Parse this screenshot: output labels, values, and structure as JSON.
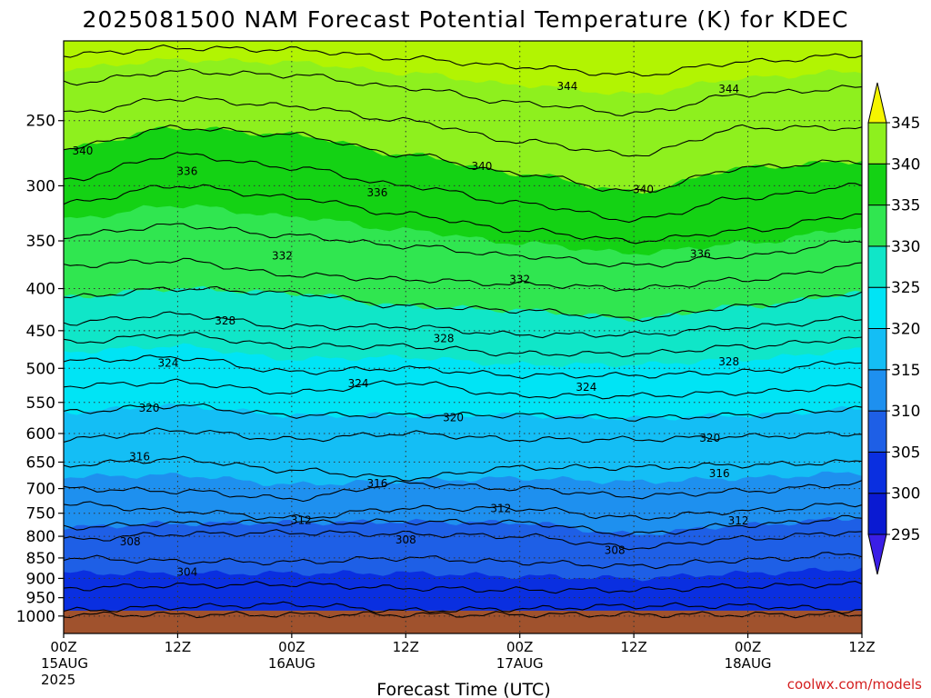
{
  "chart_data": {
    "type": "heatmap",
    "title": "2025081500 NAM Forecast Potential Temperature (K) for KDEC",
    "xlabel": "Forecast Time (UTC)",
    "ylabel": "",
    "credit": "coolwx.com/models",
    "x_tick_labels": [
      {
        "hour": 0,
        "lines": [
          "00Z",
          "15AUG",
          "2025"
        ]
      },
      {
        "hour": 12,
        "lines": [
          "12Z"
        ]
      },
      {
        "hour": 24,
        "lines": [
          "00Z",
          "16AUG"
        ]
      },
      {
        "hour": 36,
        "lines": [
          "12Z"
        ]
      },
      {
        "hour": 48,
        "lines": [
          "00Z",
          "17AUG"
        ]
      },
      {
        "hour": 60,
        "lines": [
          "12Z"
        ]
      },
      {
        "hour": 72,
        "lines": [
          "00Z",
          "18AUG"
        ]
      },
      {
        "hour": 84,
        "lines": [
          "12Z"
        ]
      }
    ],
    "xlim_hours": [
      0,
      84
    ],
    "y_axis": "pressure (hPa), log scale, decreasing upward",
    "ylim_hpa": [
      1050,
      200
    ],
    "y_tick_labels": [
      250,
      300,
      350,
      400,
      450,
      500,
      550,
      600,
      650,
      700,
      750,
      800,
      850,
      900,
      950,
      1000
    ],
    "grid": "dotted at each x and y tick",
    "colorbar": {
      "position": "right",
      "unit": "K",
      "tick_labels": [
        295,
        300,
        305,
        310,
        315,
        320,
        325,
        330,
        335,
        340,
        345
      ],
      "levels": [
        290,
        295,
        300,
        305,
        310,
        315,
        320,
        325,
        330,
        335,
        340,
        345,
        350
      ],
      "colors": [
        "#3a1ee6",
        "#0a1ad2",
        "#0a2fe0",
        "#1e5fe6",
        "#1e90ef",
        "#14bef5",
        "#00e4f5",
        "#10e6c8",
        "#30e650",
        "#14d214",
        "#8ef01e",
        "#b2f402",
        "#f5f500"
      ]
    },
    "ground_color": "#a0522d",
    "ground_top_hpa": 985,
    "isentropes_hpa": [
      {
        "theta": 300,
        "pressure": [
          996,
          996,
          996,
          996,
          996,
          996,
          996,
          996
        ]
      },
      {
        "theta": 302,
        "pressure": [
          985,
          975,
          968,
          985,
          980,
          972,
          972,
          985
        ]
      },
      {
        "theta": 304,
        "pressure": [
          925,
          918,
          915,
          925,
          930,
          930,
          920,
          915
        ]
      },
      {
        "theta": 306,
        "pressure": [
          850,
          858,
          860,
          850,
          860,
          870,
          855,
          840
        ]
      },
      {
        "theta": 308,
        "pressure": [
          808,
          795,
          792,
          795,
          800,
          825,
          805,
          790
        ]
      },
      {
        "theta": 310,
        "pressure": [
          780,
          772,
          770,
          768,
          770,
          795,
          775,
          760
        ]
      },
      {
        "theta": 312,
        "pressure": [
          730,
          745,
          760,
          740,
          740,
          760,
          745,
          730
        ]
      },
      {
        "theta": 314,
        "pressure": [
          700,
          705,
          720,
          690,
          700,
          715,
          705,
          690
        ]
      },
      {
        "theta": 316,
        "pressure": [
          655,
          645,
          665,
          680,
          660,
          660,
          655,
          650
        ]
      },
      {
        "theta": 318,
        "pressure": [
          610,
          595,
          610,
          600,
          610,
          610,
          605,
          600
        ]
      },
      {
        "theta": 320,
        "pressure": [
          565,
          555,
          570,
          570,
          570,
          575,
          570,
          560
        ]
      },
      {
        "theta": 322,
        "pressure": [
          525,
          520,
          535,
          520,
          540,
          540,
          535,
          525
        ]
      },
      {
        "theta": 324,
        "pressure": [
          490,
          485,
          505,
          500,
          510,
          510,
          505,
          490
        ]
      },
      {
        "theta": 326,
        "pressure": [
          465,
          455,
          470,
          470,
          480,
          480,
          470,
          460
        ]
      },
      {
        "theta": 328,
        "pressure": [
          440,
          430,
          445,
          445,
          455,
          455,
          445,
          435
        ]
      },
      {
        "theta": 330,
        "pressure": [
          410,
          400,
          405,
          420,
          425,
          435,
          420,
          405
        ]
      },
      {
        "theta": 332,
        "pressure": [
          375,
          370,
          385,
          390,
          395,
          400,
          390,
          375
        ]
      },
      {
        "theta": 334,
        "pressure": [
          345,
          335,
          345,
          355,
          365,
          375,
          365,
          350
        ]
      },
      {
        "theta": 336,
        "pressure": [
          315,
          300,
          310,
          325,
          340,
          350,
          340,
          325
        ]
      },
      {
        "theta": 338,
        "pressure": [
          295,
          275,
          285,
          300,
          315,
          330,
          310,
          300
        ]
      },
      {
        "theta": 340,
        "pressure": [
          270,
          255,
          260,
          275,
          290,
          305,
          285,
          280
        ]
      },
      {
        "theta": 342,
        "pressure": [
          245,
          235,
          240,
          250,
          265,
          275,
          255,
          255
        ]
      },
      {
        "theta": 344,
        "pressure": [
          225,
          218,
          220,
          228,
          238,
          245,
          232,
          228
        ]
      },
      {
        "theta": 346,
        "pressure": [
          208,
          204,
          205,
          210,
          215,
          220,
          212,
          208
        ]
      }
    ],
    "contour_labels": [
      {
        "text": "340",
        "hour": 2,
        "hpa": 272
      },
      {
        "text": "336",
        "hour": 13,
        "hpa": 288
      },
      {
        "text": "336",
        "hour": 33,
        "hpa": 306
      },
      {
        "text": "340",
        "hour": 44,
        "hpa": 284
      },
      {
        "text": "344",
        "hour": 53,
        "hpa": 227
      },
      {
        "text": "344",
        "hour": 70,
        "hpa": 229
      },
      {
        "text": "340",
        "hour": 61,
        "hpa": 303
      },
      {
        "text": "336",
        "hour": 67,
        "hpa": 363
      },
      {
        "text": "332",
        "hour": 23,
        "hpa": 365
      },
      {
        "text": "332",
        "hour": 48,
        "hpa": 390
      },
      {
        "text": "328",
        "hour": 17,
        "hpa": 438
      },
      {
        "text": "328",
        "hour": 40,
        "hpa": 460
      },
      {
        "text": "328",
        "hour": 70,
        "hpa": 491
      },
      {
        "text": "324",
        "hour": 11,
        "hpa": 493
      },
      {
        "text": "324",
        "hour": 31,
        "hpa": 522
      },
      {
        "text": "324",
        "hour": 55,
        "hpa": 527
      },
      {
        "text": "320",
        "hour": 9,
        "hpa": 559
      },
      {
        "text": "320",
        "hour": 41,
        "hpa": 574
      },
      {
        "text": "320",
        "hour": 68,
        "hpa": 608
      },
      {
        "text": "316",
        "hour": 8,
        "hpa": 640
      },
      {
        "text": "316",
        "hour": 33,
        "hpa": 690
      },
      {
        "text": "316",
        "hour": 69,
        "hpa": 671
      },
      {
        "text": "312",
        "hour": 25,
        "hpa": 765
      },
      {
        "text": "312",
        "hour": 46,
        "hpa": 740
      },
      {
        "text": "312",
        "hour": 71,
        "hpa": 766
      },
      {
        "text": "308",
        "hour": 7,
        "hpa": 812
      },
      {
        "text": "308",
        "hour": 36,
        "hpa": 808
      },
      {
        "text": "308",
        "hour": 58,
        "hpa": 832
      },
      {
        "text": "304",
        "hour": 13,
        "hpa": 884
      }
    ]
  }
}
